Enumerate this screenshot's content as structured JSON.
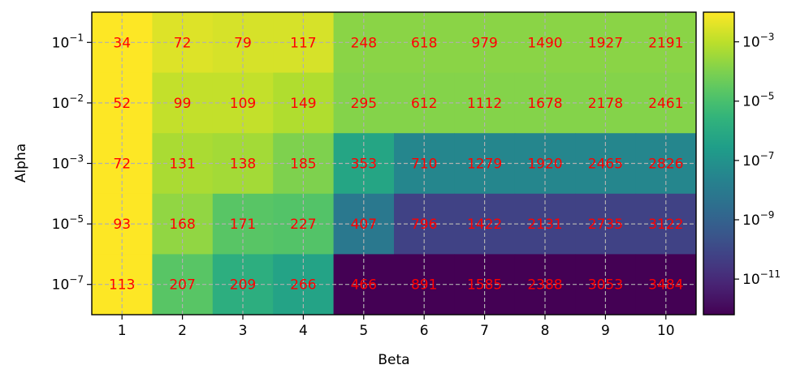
{
  "chart_data": {
    "type": "heatmap",
    "title": "",
    "xlabel": "Beta",
    "ylabel": "Alpha",
    "x_categories": [
      "1",
      "2",
      "3",
      "4",
      "5",
      "6",
      "7",
      "8",
      "9",
      "10"
    ],
    "y_categories": [
      {
        "base": "10",
        "exp": "−1"
      },
      {
        "base": "10",
        "exp": "−2"
      },
      {
        "base": "10",
        "exp": "−3"
      },
      {
        "base": "10",
        "exp": "−5"
      },
      {
        "base": "10",
        "exp": "−7"
      }
    ],
    "annotations": [
      [
        "34",
        "72",
        "79",
        "117",
        "248",
        "618",
        "979",
        "1490",
        "1927",
        "2191"
      ],
      [
        "52",
        "99",
        "109",
        "149",
        "295",
        "612",
        "1112",
        "1678",
        "2178",
        "2461"
      ],
      [
        "72",
        "131",
        "138",
        "185",
        "353",
        "710",
        "1279",
        "1920",
        "2465",
        "2826"
      ],
      [
        "93",
        "168",
        "171",
        "227",
        "407",
        "796",
        "1422",
        "2131",
        "2735",
        "3122"
      ],
      [
        "113",
        "207",
        "209",
        "266",
        "466",
        "891",
        "1585",
        "2388",
        "3053",
        "3484"
      ]
    ],
    "color_log10_values": [
      [
        -2.0,
        -2.5,
        -2.6,
        -2.6,
        -3.8,
        -3.8,
        -3.8,
        -3.8,
        -3.8,
        -3.8
      ],
      [
        -2.0,
        -2.9,
        -2.9,
        -3.2,
        -3.9,
        -3.9,
        -3.9,
        -3.9,
        -3.9,
        -3.9
      ],
      [
        -2.0,
        -3.3,
        -3.4,
        -4.0,
        -6.2,
        -7.5,
        -7.5,
        -7.5,
        -7.5,
        -7.5
      ],
      [
        -2.0,
        -3.7,
        -4.7,
        -4.8,
        -8.1,
        -10.2,
        -10.2,
        -10.2,
        -10.2,
        -10.2
      ],
      [
        -2.0,
        -4.7,
        -5.8,
        -6.3,
        -12.2,
        -12.2,
        -12.2,
        -12.2,
        -12.2,
        -12.2
      ]
    ],
    "colorbar": {
      "scale": "log",
      "colormap": "viridis",
      "range_log10": [
        -12.2,
        -2.0
      ],
      "ticks": [
        {
          "base": "10",
          "exp": "−3",
          "log10": -3
        },
        {
          "base": "10",
          "exp": "−5",
          "log10": -5
        },
        {
          "base": "10",
          "exp": "−7",
          "log10": -7
        },
        {
          "base": "10",
          "exp": "−9",
          "log10": -9
        },
        {
          "base": "10",
          "exp": "−11",
          "log10": -11
        }
      ]
    },
    "annotation_color": "#ff0000",
    "grid": true,
    "grid_style": "dashed"
  }
}
